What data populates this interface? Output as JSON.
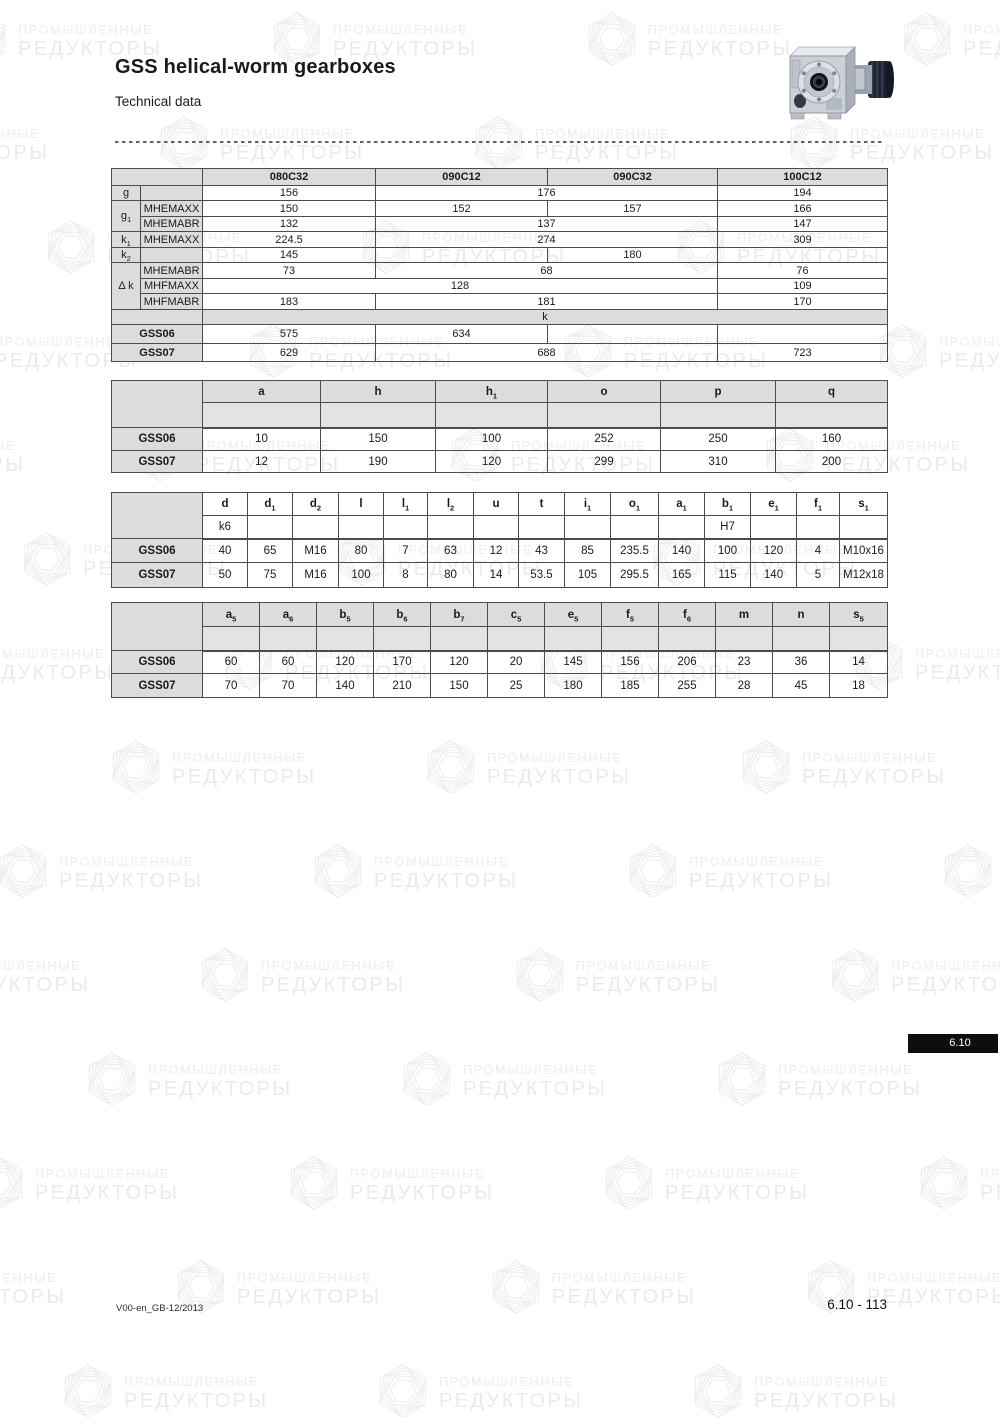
{
  "page": {
    "title": "GSS helical-worm gearboxes",
    "subtitle": "Technical data",
    "section_tab": "6.10",
    "footer_left": "V00-en_GB-12/2013",
    "footer_right": "6.10 - 113"
  },
  "watermark": {
    "line1": "ПРОМЫШЛЕННЫЕ",
    "line2": "РЕДУКТОРЫ",
    "color": "#ececec"
  },
  "icons": {
    "gearbox_image": "helical-worm-gearbox-photo",
    "watermark_logo": "hexagon-swirl-logo"
  },
  "colors": {
    "table_header_bg": "#dcdcdc",
    "table_border": "#4c4c4c",
    "tab_bg": "#0e0e0e"
  },
  "tables": {
    "t1": {
      "name": "table-mounting-dimensions",
      "columns": [
        "080C32",
        "090C12",
        "090C32",
        "100C12"
      ],
      "rows": [
        {
          "cells": [
            {
              "t": "",
              "c": 2,
              "k": "ch"
            },
            {
              "t": "080C32",
              "k": "ch"
            },
            {
              "t": "090C12",
              "k": "ch"
            },
            {
              "t": "090C32",
              "k": "ch"
            },
            {
              "t": "100C12",
              "k": "ch"
            }
          ]
        },
        {
          "cells": [
            {
              "t": "g",
              "k": "rl"
            },
            {
              "t": "",
              "k": "rl2"
            },
            {
              "t": "156",
              "k": "v"
            },
            {
              "t": "176",
              "c": 2,
              "k": "v"
            },
            {
              "t": "194",
              "k": "v"
            }
          ]
        },
        {
          "cells": [
            {
              "t": "g_1",
              "r": 2,
              "k": "rl"
            },
            {
              "t": "MHEMAXX",
              "k": "rl2"
            },
            {
              "t": "150",
              "k": "v"
            },
            {
              "t": "152",
              "k": "v"
            },
            {
              "t": "157",
              "k": "v"
            },
            {
              "t": "166",
              "k": "v"
            }
          ]
        },
        {
          "cells": [
            {
              "t": "MHEMABR",
              "k": "rl2"
            },
            {
              "t": "132",
              "k": "v"
            },
            {
              "t": "137",
              "c": 2,
              "k": "v"
            },
            {
              "t": "147",
              "k": "v"
            }
          ]
        },
        {
          "cells": [
            {
              "t": "k_1",
              "k": "rl"
            },
            {
              "t": "MHEMAXX",
              "k": "rl2"
            },
            {
              "t": "224.5",
              "k": "v"
            },
            {
              "t": "274",
              "c": 2,
              "k": "v"
            },
            {
              "t": "309",
              "k": "v"
            }
          ]
        },
        {
          "cells": [
            {
              "t": "k_2",
              "k": "rl"
            },
            {
              "t": "",
              "k": "rl2"
            },
            {
              "t": "145",
              "k": "v"
            },
            {
              "t": "",
              "k": "v"
            },
            {
              "t": "180",
              "k": "v"
            },
            {
              "t": "",
              "k": "v"
            }
          ]
        },
        {
          "cells": [
            {
              "t": "Δ k",
              "r": 3,
              "k": "rl"
            },
            {
              "t": "MHEMABR",
              "k": "rl2"
            },
            {
              "t": "73",
              "k": "v"
            },
            {
              "t": "68",
              "c": 2,
              "k": "v"
            },
            {
              "t": "76",
              "k": "v"
            }
          ]
        },
        {
          "cells": [
            {
              "t": "MHFMAXX",
              "k": "rl2"
            },
            {
              "t": "128",
              "c": 3,
              "k": "v"
            },
            {
              "t": "109",
              "k": "v"
            }
          ]
        },
        {
          "cells": [
            {
              "t": "MHFMABR",
              "k": "rl2"
            },
            {
              "t": "183",
              "k": "v"
            },
            {
              "t": "181",
              "c": 2,
              "k": "v"
            },
            {
              "t": "170",
              "k": "v"
            }
          ]
        },
        {
          "cells": [
            {
              "t": "",
              "c": 2,
              "k": "band"
            },
            {
              "t": "k",
              "c": 4,
              "k": "band"
            }
          ]
        },
        {
          "cells": [
            {
              "t": "GSS06",
              "c": 2,
              "k": "rh"
            },
            {
              "t": "575",
              "k": "v"
            },
            {
              "t": "634",
              "k": "v"
            },
            {
              "t": "",
              "k": "v"
            },
            {
              "t": "",
              "k": "v"
            }
          ]
        },
        {
          "cells": [
            {
              "t": "GSS07",
              "c": 2,
              "k": "rh"
            },
            {
              "t": "629",
              "k": "v"
            },
            {
              "t": "688",
              "c": 2,
              "k": "v"
            },
            {
              "t": "723",
              "k": "v"
            }
          ]
        }
      ]
    },
    "t2": {
      "name": "table-housing-dimensions",
      "columns": [
        "a",
        "h",
        "h1",
        "o",
        "p",
        "q"
      ],
      "rows": [
        {
          "cells": [
            {
              "t": "",
              "r": 2,
              "k": "rh"
            },
            {
              "t": "a",
              "k": "ch"
            },
            {
              "t": "h",
              "k": "ch"
            },
            {
              "t": "h_1",
              "k": "ch"
            },
            {
              "t": "o",
              "k": "ch"
            },
            {
              "t": "p",
              "k": "ch"
            },
            {
              "t": "q",
              "k": "ch"
            }
          ]
        },
        {
          "cls": "tb",
          "cells": [
            {
              "t": "",
              "k": "ch2"
            },
            {
              "t": "",
              "k": "ch2"
            },
            {
              "t": "",
              "k": "ch2"
            },
            {
              "t": "",
              "k": "ch2"
            },
            {
              "t": "",
              "k": "ch2"
            },
            {
              "t": "",
              "k": "ch2"
            }
          ]
        },
        {
          "cells": [
            {
              "t": "GSS06",
              "k": "rh"
            },
            {
              "t": "10",
              "k": "v"
            },
            {
              "t": "150",
              "k": "v"
            },
            {
              "t": "100",
              "k": "v"
            },
            {
              "t": "252",
              "k": "v"
            },
            {
              "t": "250",
              "k": "v"
            },
            {
              "t": "160",
              "k": "v"
            }
          ]
        },
        {
          "cells": [
            {
              "t": "GSS07",
              "k": "rh"
            },
            {
              "t": "12",
              "k": "v"
            },
            {
              "t": "190",
              "k": "v"
            },
            {
              "t": "120",
              "k": "v"
            },
            {
              "t": "299",
              "k": "v"
            },
            {
              "t": "310",
              "k": "v"
            },
            {
              "t": "200",
              "k": "v"
            }
          ]
        }
      ]
    },
    "t3": {
      "name": "table-output-shaft-dimensions",
      "columns": [
        "d",
        "d1",
        "d2",
        "l",
        "l1",
        "l2",
        "u",
        "t",
        "i1",
        "o1",
        "a1",
        "b1",
        "e1",
        "f1",
        "s1"
      ],
      "rows": [
        {
          "cells": [
            {
              "t": "",
              "r": 2,
              "k": "rh"
            },
            {
              "t": "d",
              "k": "whb"
            },
            {
              "t": "d_1",
              "k": "whb"
            },
            {
              "t": "d_2",
              "k": "whb"
            },
            {
              "t": "l",
              "k": "whb"
            },
            {
              "t": "l_1",
              "k": "whb"
            },
            {
              "t": "l_2",
              "k": "whb"
            },
            {
              "t": "u",
              "k": "whb"
            },
            {
              "t": "t",
              "k": "whb"
            },
            {
              "t": "i_1",
              "k": "whb"
            },
            {
              "t": "o_1",
              "k": "whb"
            },
            {
              "t": "a_1",
              "k": "whb"
            },
            {
              "t": "b_1",
              "k": "whb"
            },
            {
              "t": "e_1",
              "k": "whb"
            },
            {
              "t": "f_1",
              "k": "whb"
            },
            {
              "t": "s_1",
              "k": "whb"
            }
          ]
        },
        {
          "cls": "tb",
          "cells": [
            {
              "t": "k6",
              "k": "wh"
            },
            {
              "t": "",
              "k": "wh"
            },
            {
              "t": "",
              "k": "wh"
            },
            {
              "t": "",
              "k": "wh"
            },
            {
              "t": "",
              "k": "wh"
            },
            {
              "t": "",
              "k": "wh"
            },
            {
              "t": "",
              "k": "wh"
            },
            {
              "t": "",
              "k": "wh"
            },
            {
              "t": "",
              "k": "wh"
            },
            {
              "t": "",
              "k": "wh"
            },
            {
              "t": "",
              "k": "wh"
            },
            {
              "t": "H7",
              "k": "wh"
            },
            {
              "t": "",
              "k": "wh"
            },
            {
              "t": "",
              "k": "wh"
            },
            {
              "t": "",
              "k": "wh"
            }
          ]
        },
        {
          "cells": [
            {
              "t": "GSS06",
              "k": "rh"
            },
            {
              "t": "40",
              "k": "v"
            },
            {
              "t": "65",
              "k": "v"
            },
            {
              "t": "M16",
              "k": "v"
            },
            {
              "t": "80",
              "k": "v"
            },
            {
              "t": "7",
              "k": "v"
            },
            {
              "t": "63",
              "k": "v"
            },
            {
              "t": "12",
              "k": "v"
            },
            {
              "t": "43",
              "k": "v"
            },
            {
              "t": "85",
              "k": "v"
            },
            {
              "t": "235.5",
              "k": "v"
            },
            {
              "t": "140",
              "k": "v"
            },
            {
              "t": "100",
              "k": "v"
            },
            {
              "t": "120",
              "k": "v"
            },
            {
              "t": "4",
              "k": "v"
            },
            {
              "t": "M10x16",
              "k": "v"
            }
          ]
        },
        {
          "cells": [
            {
              "t": "GSS07",
              "k": "rh"
            },
            {
              "t": "50",
              "k": "v"
            },
            {
              "t": "75",
              "k": "v"
            },
            {
              "t": "M16",
              "k": "v"
            },
            {
              "t": "100",
              "k": "v"
            },
            {
              "t": "8",
              "k": "v"
            },
            {
              "t": "80",
              "k": "v"
            },
            {
              "t": "14",
              "k": "v"
            },
            {
              "t": "53.5",
              "k": "v"
            },
            {
              "t": "105",
              "k": "v"
            },
            {
              "t": "295.5",
              "k": "v"
            },
            {
              "t": "165",
              "k": "v"
            },
            {
              "t": "115",
              "k": "v"
            },
            {
              "t": "140",
              "k": "v"
            },
            {
              "t": "5",
              "k": "v"
            },
            {
              "t": "M12x18",
              "k": "v"
            }
          ]
        }
      ]
    },
    "t4": {
      "name": "table-foot-mounting-dimensions",
      "columns": [
        "a5",
        "a6",
        "b5",
        "b6",
        "b7",
        "c5",
        "e5",
        "f5",
        "f6",
        "m",
        "n",
        "s5"
      ],
      "rows": [
        {
          "cells": [
            {
              "t": "",
              "r": 2,
              "k": "rh"
            },
            {
              "t": "a_5",
              "k": "ch"
            },
            {
              "t": "a_6",
              "k": "ch"
            },
            {
              "t": "b_5",
              "k": "ch"
            },
            {
              "t": "b_6",
              "k": "ch"
            },
            {
              "t": "b_7",
              "k": "ch"
            },
            {
              "t": "c_5",
              "k": "ch"
            },
            {
              "t": "e_5",
              "k": "ch"
            },
            {
              "t": "f_5",
              "k": "ch"
            },
            {
              "t": "f_6",
              "k": "ch"
            },
            {
              "t": "m",
              "k": "ch"
            },
            {
              "t": "n",
              "k": "ch"
            },
            {
              "t": "s_5",
              "k": "ch"
            }
          ]
        },
        {
          "cls": "tb",
          "cells": [
            {
              "t": "",
              "k": "ch2"
            },
            {
              "t": "",
              "k": "ch2"
            },
            {
              "t": "",
              "k": "ch2"
            },
            {
              "t": "",
              "k": "ch2"
            },
            {
              "t": "",
              "k": "ch2"
            },
            {
              "t": "",
              "k": "ch2"
            },
            {
              "t": "",
              "k": "ch2"
            },
            {
              "t": "",
              "k": "ch2"
            },
            {
              "t": "",
              "k": "ch2"
            },
            {
              "t": "",
              "k": "ch2"
            },
            {
              "t": "",
              "k": "ch2"
            },
            {
              "t": "",
              "k": "ch2"
            }
          ]
        },
        {
          "cells": [
            {
              "t": "GSS06",
              "k": "rh"
            },
            {
              "t": "60",
              "k": "v"
            },
            {
              "t": "60",
              "k": "v"
            },
            {
              "t": "120",
              "k": "v"
            },
            {
              "t": "170",
              "k": "v"
            },
            {
              "t": "120",
              "k": "v"
            },
            {
              "t": "20",
              "k": "v"
            },
            {
              "t": "145",
              "k": "v"
            },
            {
              "t": "156",
              "k": "v"
            },
            {
              "t": "206",
              "k": "v"
            },
            {
              "t": "23",
              "k": "v"
            },
            {
              "t": "36",
              "k": "v"
            },
            {
              "t": "14",
              "k": "v"
            }
          ]
        },
        {
          "cells": [
            {
              "t": "GSS07",
              "k": "rh"
            },
            {
              "t": "70",
              "k": "v"
            },
            {
              "t": "70",
              "k": "v"
            },
            {
              "t": "140",
              "k": "v"
            },
            {
              "t": "210",
              "k": "v"
            },
            {
              "t": "150",
              "k": "v"
            },
            {
              "t": "25",
              "k": "v"
            },
            {
              "t": "180",
              "k": "v"
            },
            {
              "t": "185",
              "k": "v"
            },
            {
              "t": "255",
              "k": "v"
            },
            {
              "t": "28",
              "k": "v"
            },
            {
              "t": "45",
              "k": "v"
            },
            {
              "t": "18",
              "k": "v"
            }
          ]
        }
      ]
    }
  }
}
